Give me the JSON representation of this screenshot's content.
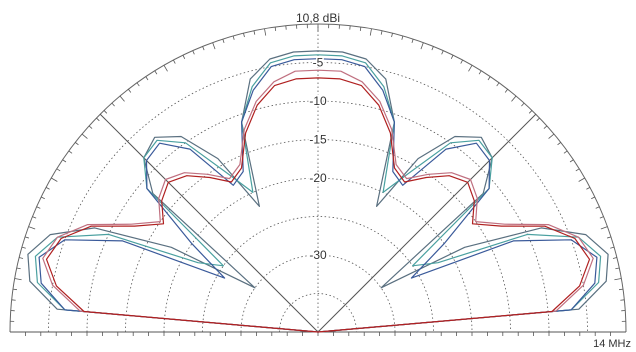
{
  "chart_data": {
    "type": "polar-elevation-pattern",
    "max_gain_label": "10,8 dBi",
    "frequency_label": "14 MHz",
    "ring_levels": [
      0,
      -5,
      -10,
      -15,
      -20,
      -25,
      -30,
      -35
    ],
    "ring_labels": [
      "-5",
      "-10",
      "-15",
      "-20",
      "-30"
    ],
    "spokes_deg": [
      0,
      45,
      90,
      135,
      180
    ],
    "series": [
      {
        "color": "#5a7080",
        "values": [
          [
            0,
            -40
          ],
          [
            5,
            -6
          ],
          [
            10,
            -2
          ],
          [
            15,
            -1
          ],
          [
            20,
            -3
          ],
          [
            25,
            -8
          ],
          [
            30,
            -18
          ],
          [
            35,
            -30
          ],
          [
            40,
            -12
          ],
          [
            45,
            -8
          ],
          [
            50,
            -7
          ],
          [
            55,
            -9
          ],
          [
            60,
            -14
          ],
          [
            65,
            -22
          ],
          [
            70,
            -11
          ],
          [
            75,
            -6
          ],
          [
            80,
            -4
          ],
          [
            85,
            -3.5
          ],
          [
            90,
            -3.5
          ]
        ]
      },
      {
        "color": "#4aa0a0",
        "values": [
          [
            0,
            -40
          ],
          [
            5,
            -7
          ],
          [
            10,
            -3
          ],
          [
            15,
            -2
          ],
          [
            20,
            -4
          ],
          [
            25,
            -10
          ],
          [
            30,
            -22
          ],
          [
            35,
            -25
          ],
          [
            40,
            -11
          ],
          [
            45,
            -8
          ],
          [
            50,
            -7.5
          ],
          [
            55,
            -10
          ],
          [
            60,
            -16
          ],
          [
            65,
            -20
          ],
          [
            70,
            -11
          ],
          [
            75,
            -7
          ],
          [
            80,
            -4.5
          ],
          [
            85,
            -4
          ],
          [
            90,
            -4
          ]
        ]
      },
      {
        "color": "#3a5a9a",
        "values": [
          [
            0,
            -40
          ],
          [
            5,
            -7
          ],
          [
            10,
            -3.5
          ],
          [
            15,
            -2.5
          ],
          [
            20,
            -5
          ],
          [
            25,
            -12
          ],
          [
            30,
            -26
          ],
          [
            35,
            -20
          ],
          [
            40,
            -11
          ],
          [
            45,
            -8.5
          ],
          [
            50,
            -8
          ],
          [
            55,
            -11
          ],
          [
            60,
            -18
          ],
          [
            65,
            -17
          ],
          [
            70,
            -11
          ],
          [
            75,
            -7.5
          ],
          [
            80,
            -5
          ],
          [
            85,
            -4.5
          ],
          [
            90,
            -4.5
          ]
        ]
      },
      {
        "color": "#c07080",
        "values": [
          [
            0,
            -40
          ],
          [
            5,
            -9
          ],
          [
            10,
            -5
          ],
          [
            15,
            -3
          ],
          [
            20,
            -4
          ],
          [
            25,
            -7
          ],
          [
            30,
            -12
          ],
          [
            35,
            -15
          ],
          [
            40,
            -13
          ],
          [
            45,
            -12
          ],
          [
            50,
            -13
          ],
          [
            55,
            -15
          ],
          [
            60,
            -17
          ],
          [
            65,
            -16
          ],
          [
            70,
            -12
          ],
          [
            75,
            -9
          ],
          [
            80,
            -7
          ],
          [
            85,
            -6
          ],
          [
            90,
            -6
          ]
        ]
      },
      {
        "color": "#b02020",
        "values": [
          [
            0,
            -40
          ],
          [
            5,
            -9.5
          ],
          [
            10,
            -5.5
          ],
          [
            15,
            -3.5
          ],
          [
            20,
            -4.5
          ],
          [
            25,
            -7.5
          ],
          [
            30,
            -12.5
          ],
          [
            35,
            -15.5
          ],
          [
            40,
            -13.5
          ],
          [
            45,
            -12.5
          ],
          [
            50,
            -13.5
          ],
          [
            55,
            -15.5
          ],
          [
            60,
            -17.5
          ],
          [
            65,
            -16.5
          ],
          [
            70,
            -12.5
          ],
          [
            75,
            -9.5
          ],
          [
            80,
            -7.5
          ],
          [
            85,
            -7
          ],
          [
            90,
            -7
          ]
        ]
      }
    ]
  }
}
